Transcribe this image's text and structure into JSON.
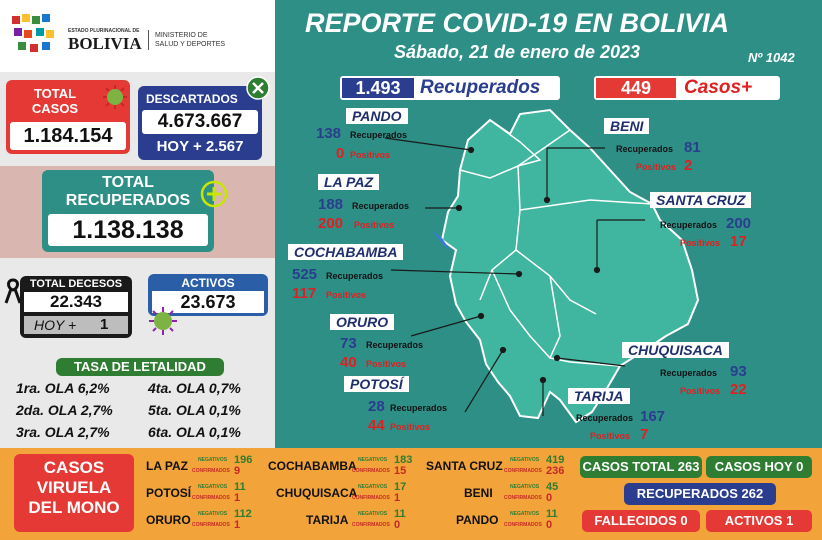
{
  "header": {
    "org_top": "ESTADO PLURINACIONAL DE",
    "org_main": "BOLIVIA",
    "ministry_line1": "MINISTERIO DE",
    "ministry_line2": "SALUD Y DEPORTES",
    "title": "REPORTE COVID-19 EN BOLIVIA",
    "date": "Sábado, 21 de enero de 2023",
    "report_number": "Nº 1042"
  },
  "summary": {
    "total_cases_label": "TOTAL CASOS",
    "total_cases": "1.184.154",
    "discarded_label": "DESCARTADOS",
    "discarded": "4.673.667",
    "discarded_today": "HOY + 2.567",
    "total_recovered_label1": "TOTAL",
    "total_recovered_label2": "RECUPERADOS",
    "total_recovered": "1.138.138",
    "deaths_label": "TOTAL DECESOS",
    "deaths": "22.343",
    "deaths_today_label": "HOY +",
    "deaths_today": "1",
    "active_label": "ACTIVOS",
    "active": "23.673"
  },
  "lethality": {
    "title": "TASA DE LETALIDAD",
    "rows": [
      {
        "left": "1ra. OLA 6,2%",
        "right": "4ta. OLA 0,7%"
      },
      {
        "left": "2da. OLA 2,7%",
        "right": "5ta. OLA 0,1%"
      },
      {
        "left": "3ra. OLA 2,7%",
        "right": "6ta. OLA 0,1%"
      }
    ]
  },
  "daily": {
    "recovered_value": "1.493",
    "recovered_label": "Recuperados",
    "cases_value": "449",
    "cases_label": "Casos+"
  },
  "labels": {
    "recovered": "Recuperados",
    "positive": "Positivos"
  },
  "departments": {
    "pando": {
      "name": "PANDO",
      "recovered": "138",
      "positive": "0"
    },
    "beni": {
      "name": "BENI",
      "recovered": "81",
      "positive": "2"
    },
    "la_paz": {
      "name": "LA PAZ",
      "recovered": "188",
      "positive": "200"
    },
    "santa_cruz": {
      "name": "SANTA CRUZ",
      "recovered": "200",
      "positive": "17"
    },
    "cochabamba": {
      "name": "COCHABAMBA",
      "recovered": "525",
      "positive": "117"
    },
    "oruro": {
      "name": "ORURO",
      "recovered": "73",
      "positive": "40"
    },
    "chuquisaca": {
      "name": "CHUQUISACA",
      "recovered": "93",
      "positive": "22"
    },
    "potosi": {
      "name": "POTOSÍ",
      "recovered": "28",
      "positive": "44"
    },
    "tarija": {
      "name": "TARIJA",
      "recovered": "167",
      "positive": "7"
    }
  },
  "monkeypox": {
    "title_line1": "CASOS",
    "title_line2": "VIRUELA",
    "title_line3": "DEL MONO",
    "neg_label": "NEGATIVOS",
    "conf_label": "CONFIRMADOS",
    "regions": [
      {
        "name": "LA PAZ",
        "neg": "196",
        "conf": "9"
      },
      {
        "name": "COCHABAMBA",
        "neg": "183",
        "conf": "15"
      },
      {
        "name": "SANTA CRUZ",
        "neg": "419",
        "conf": "236"
      },
      {
        "name": "POTOSÍ",
        "neg": "11",
        "conf": "1"
      },
      {
        "name": "CHUQUISACA",
        "neg": "17",
        "conf": "1"
      },
      {
        "name": "BENI",
        "neg": "45",
        "conf": "0"
      },
      {
        "name": "ORURO",
        "neg": "112",
        "conf": "1"
      },
      {
        "name": "TARIJA",
        "neg": "11",
        "conf": "0"
      },
      {
        "name": "PANDO",
        "neg": "11",
        "conf": "0"
      }
    ],
    "total_cases": "CASOS TOTAL 263",
    "cases_today": "CASOS HOY  0",
    "recovered": "RECUPERADOS  262",
    "deceased": "FALLECIDOS  0",
    "active": "ACTIVOS  1"
  },
  "colors": {
    "teal": "#2d8f86",
    "navy": "#2a3d8f",
    "red": "#e53935",
    "orange": "#f2a33a"
  }
}
